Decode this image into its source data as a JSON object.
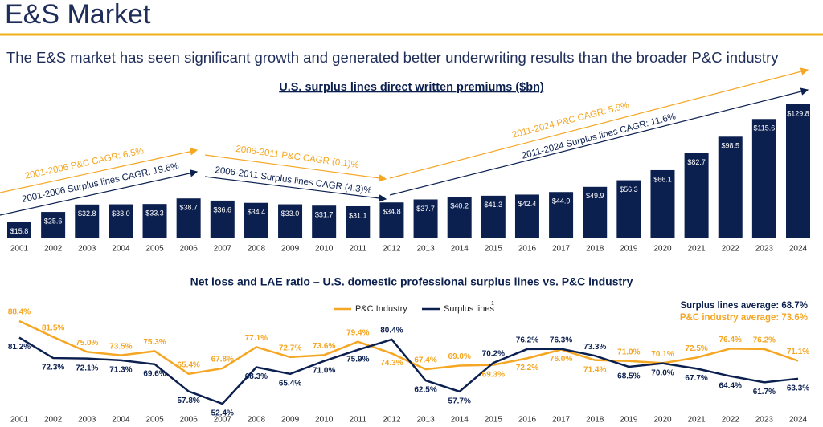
{
  "header": {
    "title": "E&S Market",
    "subtitle": "The E&S market has seen significant growth and generated better underwriting results than the broader P&C industry"
  },
  "chart_data": [
    {
      "type": "bar",
      "title": "U.S. surplus lines direct written premiums ($bn)",
      "categories": [
        "2001",
        "2002",
        "2003",
        "2004",
        "2005",
        "2006",
        "2007",
        "2008",
        "2009",
        "2010",
        "2011",
        "2012",
        "2013",
        "2014",
        "2015",
        "2016",
        "2017",
        "2018",
        "2019",
        "2020",
        "2021",
        "2022",
        "2023",
        "2024"
      ],
      "values": [
        15.8,
        25.6,
        32.8,
        33.0,
        33.3,
        38.7,
        36.6,
        34.4,
        33.0,
        31.7,
        31.1,
        34.8,
        37.7,
        40.2,
        41.3,
        42.4,
        44.9,
        49.9,
        56.3,
        66.1,
        82.7,
        98.5,
        115.6,
        129.8
      ],
      "value_labels": [
        "$15.8",
        "$25.6",
        "$32.8",
        "$33.0",
        "$33.3",
        "$38.7",
        "$36.6",
        "$34.4",
        "$33.0",
        "$31.7",
        "$31.1",
        "$34.8",
        "$37.7",
        "$40.2",
        "$41.3",
        "$42.4",
        "$44.9",
        "$49.9",
        "$56.3",
        "$66.1",
        "$82.7",
        "$98.5",
        "$115.6",
        "$129.8"
      ],
      "color": "#0c2050",
      "annotations": [
        {
          "text": "2001-2006 P&C CAGR: 6.5%",
          "color": "#f5a623"
        },
        {
          "text": "2001-2006 Surplus lines CAGR: 19.6%",
          "color": "#0c2050"
        },
        {
          "text": "2006-2011 P&C CAGR (0.1)%",
          "color": "#f5a623"
        },
        {
          "text": "2006-2011 Surplus lines CAGR (4.3)%",
          "color": "#0c2050"
        },
        {
          "text": "2011-2024 P&C CAGR: 5.9%",
          "color": "#f5a623"
        },
        {
          "text": "2011-2024 Surplus lines CAGR: 11.6%",
          "color": "#0c2050"
        }
      ]
    },
    {
      "type": "line",
      "title": "Net loss and LAE ratio – U.S. domestic professional surplus lines vs. P&C industry",
      "categories": [
        "2001",
        "2002",
        "2003",
        "2004",
        "2005",
        "2006",
        "2007",
        "2008",
        "2009",
        "2010",
        "2011",
        "2012",
        "2013",
        "2014",
        "2015",
        "2016",
        "2017",
        "2018",
        "2019",
        "2020",
        "2021",
        "2022",
        "2023",
        "2024"
      ],
      "series": [
        {
          "name": "P&C Industry",
          "color": "#f5a623",
          "values": [
            88.4,
            81.5,
            75.0,
            73.5,
            75.3,
            65.4,
            67.8,
            77.1,
            72.7,
            73.6,
            79.4,
            74.3,
            67.4,
            69.0,
            69.3,
            72.2,
            76.0,
            71.4,
            71.0,
            70.1,
            72.5,
            76.4,
            76.2,
            71.1
          ],
          "value_labels": [
            "88.4%",
            "81.5%",
            "75.0%",
            "73.5%",
            "75.3%",
            "65.4%",
            "67.8%",
            "77.1%",
            "72.7%",
            "73.6%",
            "79.4%",
            "74.3%",
            "67.4%",
            "69.0%",
            "69.3%",
            "72.2%",
            "76.0%",
            "71.4%",
            "71.0%",
            "70.1%",
            "72.5%",
            "76.4%",
            "76.2%",
            "71.1%"
          ]
        },
        {
          "name": "Surplus lines",
          "color": "#0c2050",
          "values": [
            81.2,
            72.3,
            72.1,
            71.3,
            69.6,
            57.8,
            52.4,
            68.3,
            65.4,
            71.0,
            75.9,
            80.4,
            62.5,
            57.7,
            70.2,
            76.2,
            76.3,
            73.3,
            68.5,
            70.0,
            67.7,
            64.4,
            61.7,
            63.3
          ],
          "value_labels": [
            "81.2%",
            "72.3%",
            "72.1%",
            "71.3%",
            "69.6%",
            "57.8%",
            "52.4%",
            "68.3%",
            "65.4%",
            "71.0%",
            "75.9%",
            "80.4%",
            "62.5%",
            "57.7%",
            "70.2%",
            "76.2%",
            "76.3%",
            "73.3%",
            "68.5%",
            "70.0%",
            "67.7%",
            "64.4%",
            "61.7%",
            "63.3%"
          ]
        }
      ],
      "footnote_mark": "1",
      "annotations": [
        {
          "text": "Surplus lines average: 68.7%",
          "color": "#0c2050"
        },
        {
          "text": "P&C industry average: 73.6%",
          "color": "#f5a623"
        }
      ]
    }
  ]
}
